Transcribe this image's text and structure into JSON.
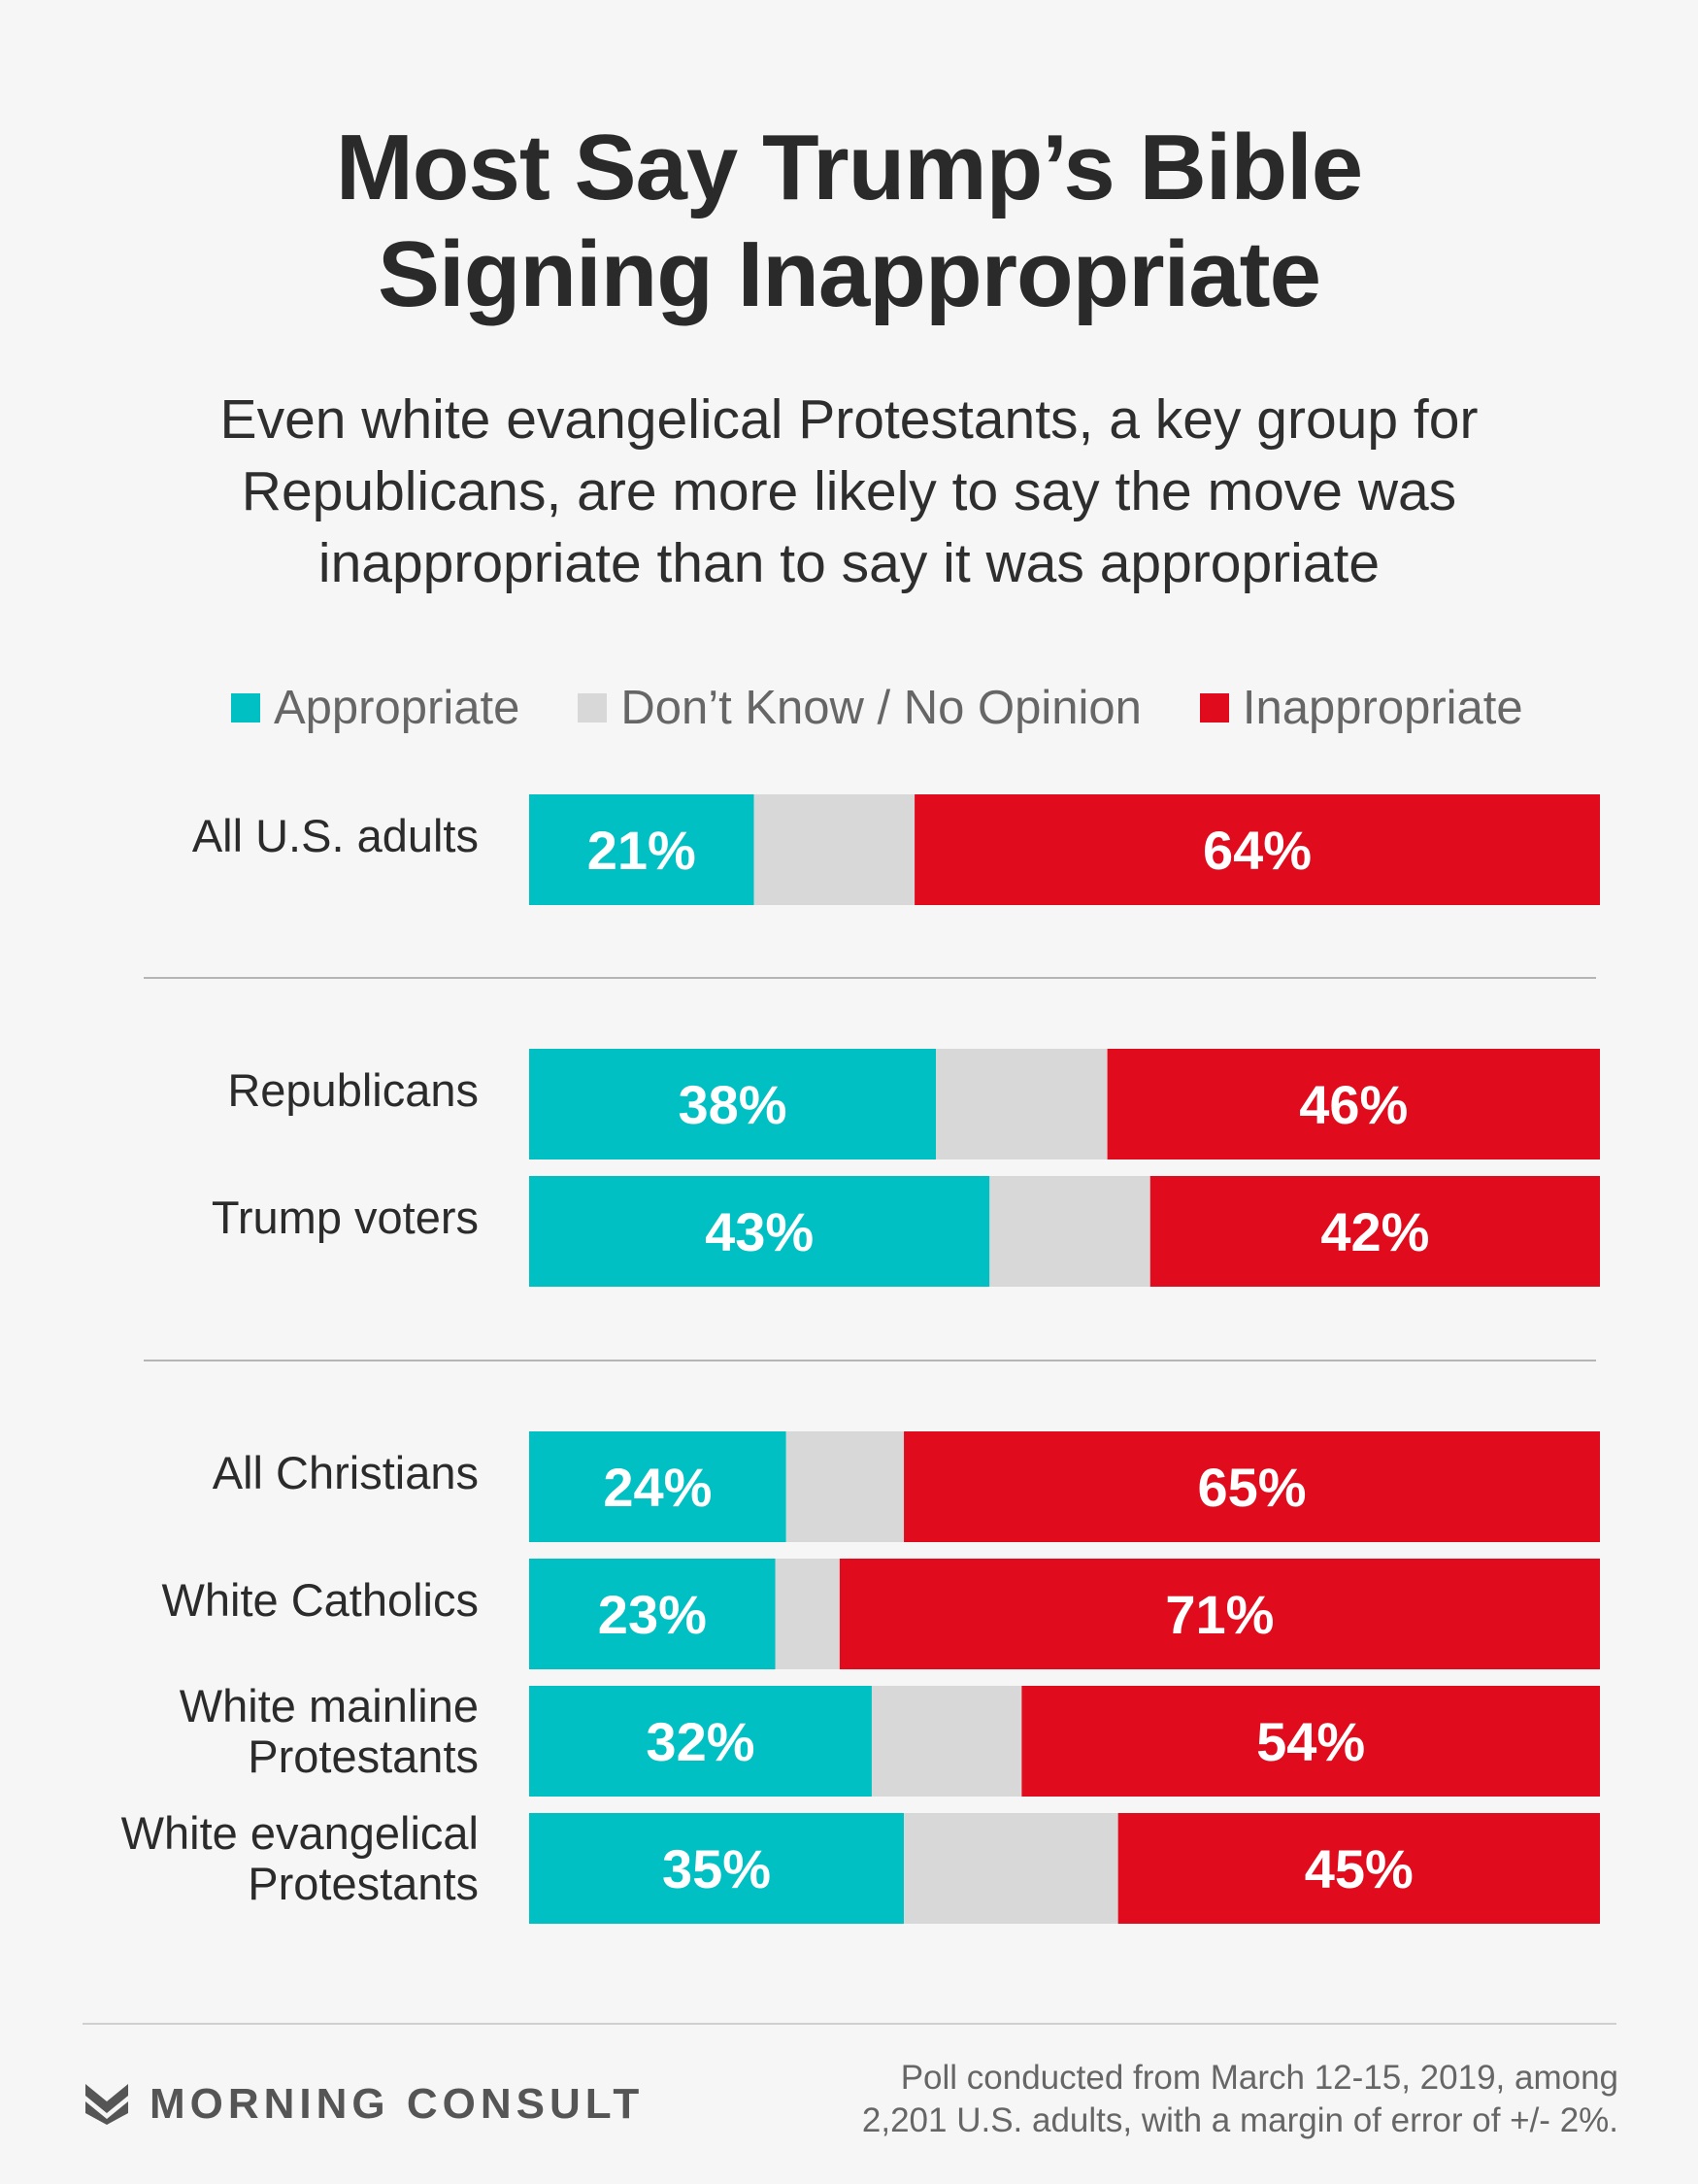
{
  "title_lines": [
    "Most Say Trump’s Bible",
    "Signing Inappropriate"
  ],
  "subtitle_lines": [
    "Even white evangelical Protestants, a key group for",
    "Republicans, are more likely to say the move was",
    "inappropriate than to say it was appropriate"
  ],
  "colors": {
    "appropriate": "#00c0c3",
    "dont_know": "#d8d8d8",
    "inappropriate": "#e00b1c"
  },
  "chart_data": {
    "type": "bar",
    "orientation": "horizontal",
    "stacked": true,
    "legend_position": "top",
    "legend": [
      "Appropriate",
      "Don’t Know / No Opinion",
      "Inappropriate"
    ],
    "groups": [
      [
        {
          "label": [
            "All U.S. adults"
          ],
          "appropriate": 21,
          "dont_know": 15,
          "inappropriate": 64,
          "appropriate_label": "21%",
          "inappropriate_label": "64%"
        }
      ],
      [
        {
          "label": [
            "Republicans"
          ],
          "appropriate": 38,
          "dont_know": 16,
          "inappropriate": 46,
          "appropriate_label": "38%",
          "inappropriate_label": "46%"
        },
        {
          "label": [
            "Trump voters"
          ],
          "appropriate": 43,
          "dont_know": 15,
          "inappropriate": 42,
          "appropriate_label": "43%",
          "inappropriate_label": "42%"
        }
      ],
      [
        {
          "label": [
            "All Christians"
          ],
          "appropriate": 24,
          "dont_know": 11,
          "inappropriate": 65,
          "appropriate_label": "24%",
          "inappropriate_label": "65%"
        },
        {
          "label": [
            "White Catholics"
          ],
          "appropriate": 23,
          "dont_know": 6,
          "inappropriate": 71,
          "appropriate_label": "23%",
          "inappropriate_label": "71%"
        },
        {
          "label": [
            "White mainline",
            "Protestants"
          ],
          "appropriate": 32,
          "dont_know": 14,
          "inappropriate": 54,
          "appropriate_label": "32%",
          "inappropriate_label": "54%"
        },
        {
          "label": [
            "White evangelical",
            "Protestants"
          ],
          "appropriate": 35,
          "dont_know": 20,
          "inappropriate": 45,
          "appropriate_label": "35%",
          "inappropriate_label": "45%"
        }
      ]
    ]
  },
  "footer": {
    "brand": "MORNING CONSULT",
    "note_lines": [
      "Poll conducted from March 12-15, 2019, among",
      "2,201 U.S. adults, with a margin of error of +/- 2%."
    ]
  }
}
